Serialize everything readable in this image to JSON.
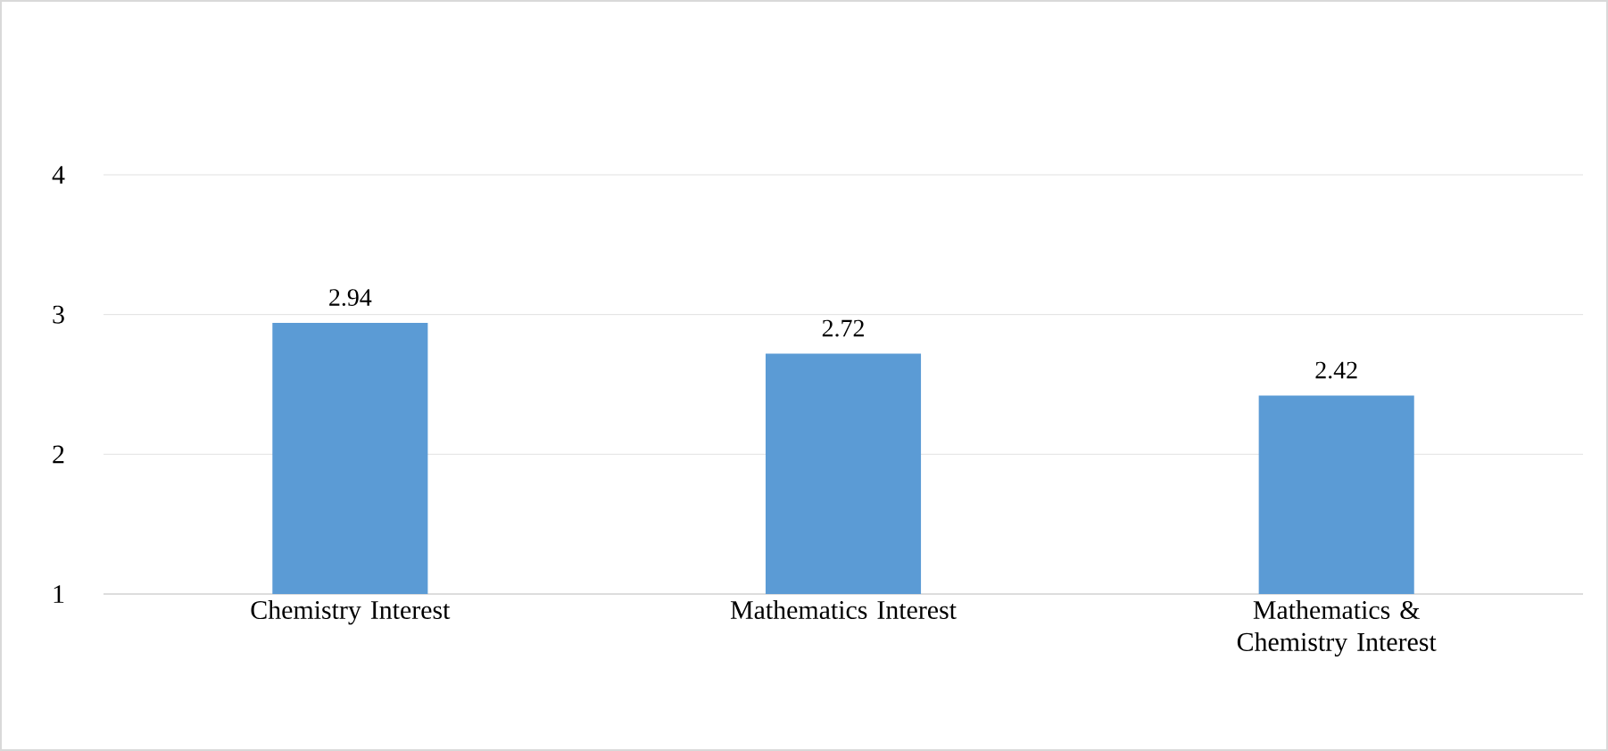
{
  "chart_data": {
    "type": "bar",
    "categories": [
      "Chemistry Interest",
      "Mathematics Interest",
      "Mathematics & Chemistry Interest"
    ],
    "values": [
      2.94,
      2.72,
      2.42
    ],
    "color": "#5b9bd5",
    "ylim": [
      1,
      4
    ],
    "yticks": [
      1,
      2,
      3,
      4
    ],
    "grid": "y",
    "data_labels": true
  }
}
